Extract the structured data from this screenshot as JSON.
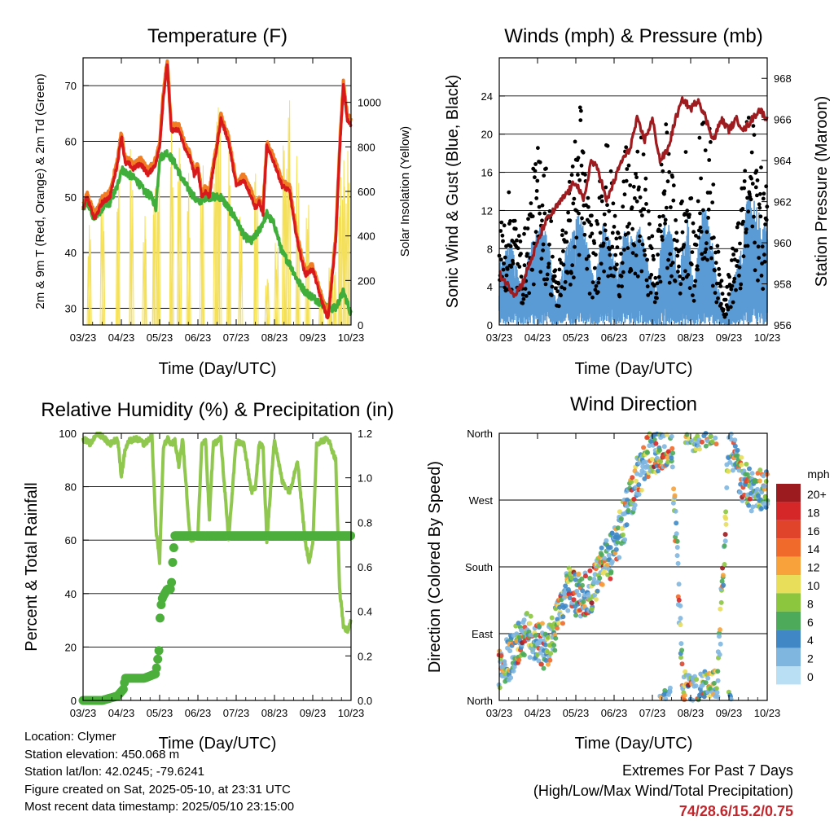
{
  "months": [
    "03/23",
    "04/23",
    "05/23",
    "06/23",
    "07/23",
    "08/23",
    "09/23",
    "10/23"
  ],
  "info": {
    "location": "Location: Clymer",
    "elevation": "Station elevation: 450.068 m",
    "latlon": "Station lat/lon: 42.0245; -79.6241",
    "created": "Figure created on Sat, 2025-05-10, at 23:31 UTC",
    "recent": "Most recent data timestamp: 2025/05/10 23:15:00"
  },
  "extremes": {
    "line1": "Extremes For Past 7 Days",
    "line2": "(High/Low/Max Wind/Total Precipitation)",
    "values": "74/28.6/15.2/0.75"
  },
  "chart_data": [
    {
      "type": "line",
      "title": "Temperature (F)",
      "xlabel": "Time (Day/UTC)",
      "ylabel": "2m & 9m T (Red, Orange) & 2m Td (Green)",
      "y2label": "Solar Insolation (Yellow)",
      "ylim": [
        27,
        75
      ],
      "y2lim": [
        0,
        1200
      ],
      "yticks": [
        30,
        40,
        50,
        60,
        70
      ],
      "y2ticks": [
        0,
        200,
        400,
        600,
        800,
        1000
      ],
      "colors": {
        "t2m": "#d7191c",
        "t9m": "#f07c24",
        "td": "#3fae3a",
        "solar": "#f5e05a"
      },
      "series": [
        {
          "key": "t2m",
          "x": [
            0,
            0.1,
            0.3,
            0.5,
            0.7,
            0.9,
            1.0,
            1.1,
            1.2,
            1.3,
            1.5,
            1.7,
            1.9,
            2.0,
            2.1,
            2.2,
            2.3,
            2.5,
            2.7,
            2.8,
            2.9,
            3.0,
            3.1,
            3.2,
            3.3,
            3.4,
            3.5,
            3.6,
            3.8,
            4.0,
            4.2,
            4.4,
            4.5,
            4.6,
            4.7,
            4.8,
            5.0,
            5.2,
            5.4,
            5.5,
            5.6,
            5.8,
            6.0,
            6.2,
            6.4,
            6.6,
            6.7,
            6.8,
            6.9,
            7.0
          ],
          "y": [
            48,
            50,
            46,
            49,
            50,
            56,
            61,
            56,
            56,
            55,
            56,
            54,
            56,
            59,
            68,
            74,
            62,
            62,
            58,
            57,
            54,
            55,
            50,
            51,
            50,
            55,
            59,
            64,
            60,
            52,
            53,
            50,
            48,
            49,
            47,
            59,
            56,
            52,
            51,
            46,
            42,
            36,
            37,
            32,
            28,
            42,
            58,
            70,
            64,
            63
          ]
        },
        {
          "key": "td",
          "x": [
            0,
            0.1,
            0.3,
            0.5,
            0.7,
            0.9,
            1.0,
            1.2,
            1.4,
            1.6,
            1.8,
            1.9,
            2.0,
            2.2,
            2.4,
            2.6,
            2.8,
            2.9,
            3.0,
            3.2,
            3.4,
            3.6,
            3.8,
            4.0,
            4.2,
            4.4,
            4.6,
            4.8,
            5.0,
            5.2,
            5.4,
            5.6,
            5.8,
            6.0,
            6.2,
            6.4,
            6.6,
            6.8,
            7.0
          ],
          "y": [
            48,
            49,
            46,
            48,
            49,
            52,
            55,
            54,
            53,
            51,
            50,
            48,
            57,
            58,
            56,
            53,
            51,
            50,
            49,
            50,
            50,
            50,
            48,
            46,
            43,
            42,
            44,
            47,
            45,
            40,
            38,
            35,
            33,
            32,
            31,
            30,
            30,
            33,
            29
          ]
        },
        {
          "key": "solar",
          "x": [
            0.15,
            0.5,
            0.9,
            1.25,
            1.6,
            1.85,
            1.95,
            2.3,
            2.5,
            2.75,
            3.1,
            3.45,
            3.55,
            3.8,
            4.1,
            4.5,
            4.8,
            5.05,
            5.25,
            5.35,
            5.6,
            5.85,
            6.2,
            6.45,
            6.55,
            6.7,
            6.8,
            6.9
          ],
          "y": [
            450,
            600,
            800,
            850,
            520,
            790,
            780,
            1030,
            1090,
            700,
            1060,
            980,
            1130,
            800,
            580,
            750,
            220,
            380,
            860,
            1010,
            810,
            560,
            200,
            300,
            260,
            700,
            1020,
            900
          ]
        }
      ]
    },
    {
      "type": "scatter",
      "title": "Winds (mph) & Pressure (mb)",
      "xlabel": "Time (Day/UTC)",
      "ylabel": "Sonic Wind & Gust (Blue, Black)",
      "y2label": "Station Pressure (Maroon)",
      "ylim": [
        0,
        28
      ],
      "y2lim": [
        956,
        969
      ],
      "yticks": [
        0,
        4,
        8,
        12,
        16,
        20,
        24
      ],
      "y2ticks": [
        956,
        958,
        960,
        962,
        964,
        966,
        968
      ],
      "colors": {
        "wind": "#5b9bd5",
        "gust": "#000000",
        "pressure": "#9e1b20"
      },
      "series": [
        {
          "key": "gust_envelope",
          "x": [
            0,
            0.3,
            0.6,
            0.9,
            1.1,
            1.3,
            1.5,
            1.7,
            1.9,
            2.1,
            2.3,
            2.5,
            2.7,
            2.9,
            3.1,
            3.3,
            3.5,
            3.7,
            3.9,
            4.1,
            4.3,
            4.5,
            4.7,
            4.9,
            5.1,
            5.3,
            5.5,
            5.7,
            5.9,
            6.1,
            6.3,
            6.5,
            6.7,
            6.9,
            7.0
          ],
          "y": [
            10,
            14,
            8,
            16,
            20,
            14,
            4,
            12,
            16,
            24,
            15,
            8,
            22,
            16,
            10,
            18,
            14,
            20,
            12,
            6,
            22,
            16,
            10,
            20,
            8,
            25,
            20,
            8,
            3,
            8,
            12,
            22,
            20,
            14,
            18
          ]
        },
        {
          "key": "wind_envelope",
          "x": [
            0,
            0.3,
            0.6,
            0.9,
            1.1,
            1.3,
            1.5,
            1.7,
            1.9,
            2.1,
            2.3,
            2.5,
            2.7,
            2.9,
            3.1,
            3.3,
            3.5,
            3.7,
            3.9,
            4.1,
            4.3,
            4.5,
            4.7,
            4.9,
            5.1,
            5.3,
            5.5,
            5.7,
            5.9,
            6.1,
            6.3,
            6.5,
            6.7,
            6.9,
            7.0
          ],
          "y": [
            6,
            8,
            4,
            9,
            10,
            8,
            2,
            7,
            9,
            11,
            8,
            4,
            10,
            8,
            5,
            10,
            8,
            10,
            6,
            3,
            11,
            9,
            5,
            11,
            4,
            12,
            10,
            4,
            1,
            4,
            7,
            13,
            12,
            9,
            11
          ]
        },
        {
          "key": "pressure",
          "x": [
            0,
            0.2,
            0.4,
            0.6,
            0.8,
            1.0,
            1.2,
            1.4,
            1.6,
            1.8,
            2.0,
            2.2,
            2.4,
            2.6,
            2.8,
            3.0,
            3.2,
            3.4,
            3.6,
            3.8,
            4.0,
            4.2,
            4.4,
            4.6,
            4.8,
            5.0,
            5.2,
            5.4,
            5.6,
            5.8,
            6.0,
            6.2,
            6.4,
            6.6,
            6.8,
            7.0
          ],
          "y": [
            958.5,
            958,
            957.5,
            958,
            959,
            960,
            961,
            961.5,
            962,
            962.5,
            963,
            962,
            964,
            963.5,
            962,
            963,
            964,
            964.5,
            966,
            965,
            966,
            964,
            964.5,
            966,
            967,
            966.5,
            967,
            966,
            965,
            966,
            965.5,
            966,
            965.5,
            966,
            966.5,
            966
          ]
        }
      ]
    },
    {
      "type": "line",
      "title": "Relative Humidity (%) & Precipitation (in)",
      "xlabel": "Time (Day/UTC)",
      "ylabel": "Percent & Total Rainfall",
      "ylim": [
        0,
        100
      ],
      "y2lim": [
        0,
        1.2
      ],
      "yticks": [
        0,
        20,
        40,
        60,
        80,
        100
      ],
      "y2ticks": [
        0.0,
        0.2,
        0.4,
        0.6,
        0.8,
        1.0,
        1.2
      ],
      "colors": {
        "rh": "#8fc74f",
        "precip": "#4caf3c"
      },
      "series": [
        {
          "key": "rh",
          "x": [
            0,
            0.2,
            0.35,
            0.5,
            0.7,
            0.9,
            1.0,
            1.1,
            1.2,
            1.4,
            1.6,
            1.8,
            1.9,
            2.0,
            2.1,
            2.2,
            2.3,
            2.4,
            2.5,
            2.6,
            2.8,
            3.0,
            3.1,
            3.2,
            3.3,
            3.4,
            3.6,
            3.8,
            4.0,
            4.2,
            4.4,
            4.5,
            4.6,
            4.7,
            4.8,
            5.0,
            5.2,
            5.4,
            5.6,
            5.8,
            5.9,
            6.0,
            6.1,
            6.2,
            6.4,
            6.6,
            6.7,
            6.8,
            6.9,
            7.0
          ],
          "y": [
            98,
            96,
            100,
            99,
            96,
            98,
            84,
            94,
            97,
            98,
            96,
            99,
            65,
            52,
            95,
            98,
            96,
            97,
            88,
            98,
            60,
            62,
            96,
            97,
            68,
            96,
            98,
            60,
            97,
            96,
            78,
            80,
            96,
            95,
            60,
            98,
            82,
            78,
            90,
            60,
            52,
            58,
            96,
            97,
            98,
            90,
            42,
            28,
            26,
            30
          ]
        },
        {
          "key": "precip",
          "x": [
            0,
            0.5,
            0.9,
            1.05,
            1.1,
            1.6,
            1.9,
            2.0,
            2.0,
            2.05,
            2.1,
            2.2,
            2.3,
            2.35,
            2.4,
            2.5,
            3.0,
            4.0,
            5.0,
            6.0,
            7.0
          ],
          "y": [
            0,
            0,
            0.02,
            0.05,
            0.1,
            0.1,
            0.12,
            0.25,
            0.35,
            0.45,
            0.47,
            0.5,
            0.5,
            0.65,
            0.74,
            0.74,
            0.74,
            0.74,
            0.74,
            0.74,
            0.74
          ]
        }
      ]
    },
    {
      "type": "scatter",
      "title": "Wind Direction",
      "xlabel": "Time (Day/UTC)",
      "ylabel": "Direction (Colored By Speed)",
      "ylim": [
        0,
        360
      ],
      "yticks": [
        "North",
        "East",
        "South",
        "West",
        "North"
      ],
      "legend": {
        "title": "mph",
        "labels": [
          "20+",
          "18",
          "16",
          "14",
          "12",
          "10",
          "8",
          "6",
          "4",
          "2",
          "0"
        ],
        "colors": [
          "#9b1b1e",
          "#d62728",
          "#e0452b",
          "#f06a2b",
          "#f7a23a",
          "#e8de5a",
          "#8cc63f",
          "#4caa5a",
          "#3f88c5",
          "#7fb6e0",
          "#b9dff4"
        ]
      },
      "series": [
        {
          "key": "direction_trend",
          "x": [
            0,
            0.3,
            0.6,
            0.9,
            1.2,
            1.5,
            1.8,
            2.1,
            2.4,
            2.7,
            3.0,
            3.3,
            3.6,
            3.9,
            4.2,
            4.5,
            4.8,
            5.1,
            5.4,
            5.7,
            6.0,
            6.3,
            6.6,
            6.9
          ],
          "y": [
            40,
            60,
            90,
            85,
            70,
            100,
            150,
            140,
            150,
            180,
            200,
            250,
            300,
            330,
            340,
            350,
            20,
            5,
            10,
            15,
            350,
            300,
            280,
            290
          ]
        }
      ]
    }
  ]
}
